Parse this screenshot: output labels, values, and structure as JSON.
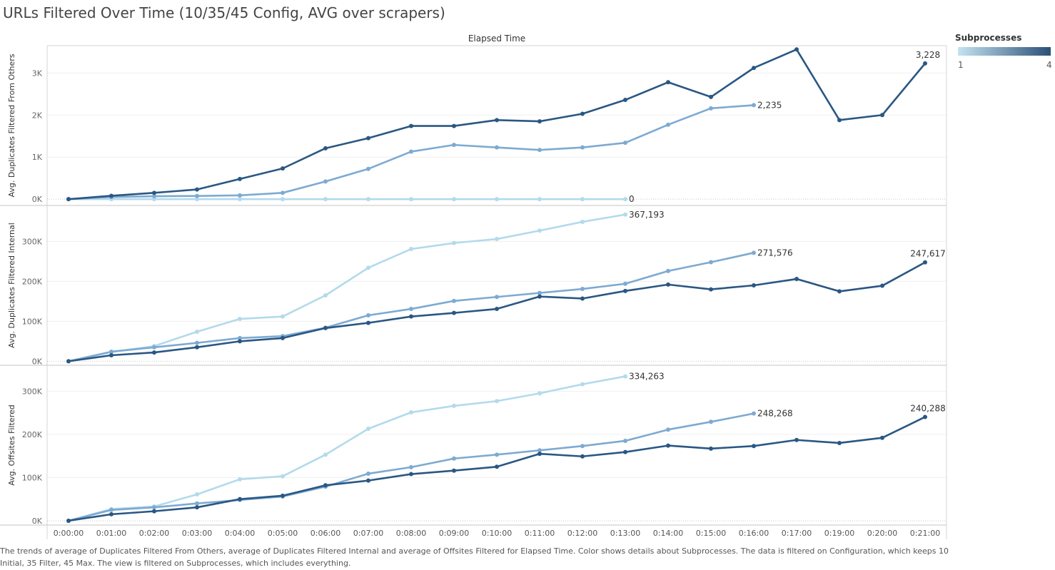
{
  "page": {
    "title": "URLs Filtered Over Time (10/35/45 Config, AVG over scrapers)",
    "caption": "The trends of average of Duplicates Filtered From Others, average of Duplicates Filtered Internal and average of Offsites Filtered for Elapsed Time.  Color shows details about Subprocesses. The data is filtered on Configuration, which keeps 10 Initial, 35 Filter, 45 Max. The view is filtered on Subprocesses, which includes everything."
  },
  "legend": {
    "title": "Subprocesses",
    "min_label": "1",
    "max_label": "4",
    "color_low": "#c5e3f2",
    "color_high": "#2b5076"
  },
  "chart_data": {
    "type": "line",
    "column_header": "Elapsed Time",
    "categories": [
      "0:00:00",
      "0:01:00",
      "0:02:00",
      "0:03:00",
      "0:04:00",
      "0:05:00",
      "0:06:00",
      "0:07:00",
      "0:08:00",
      "0:09:00",
      "0:10:00",
      "0:11:00",
      "0:12:00",
      "0:13:00",
      "0:14:00",
      "0:15:00",
      "0:16:00",
      "0:17:00",
      "0:19:00",
      "0:20:00",
      "0:21:00"
    ],
    "colors": {
      "light": "#b3daec",
      "mid": "#7daad2",
      "dark": "#2a5783"
    },
    "panels": [
      {
        "ylabel": "Avg. Duplicates Filtered From Others",
        "ylim": [
          -150,
          3650
        ],
        "ticks": [
          0,
          1000,
          2000,
          3000
        ],
        "tick_labels": [
          "0K",
          "1K",
          "2K",
          "3K"
        ],
        "series": [
          {
            "color": "light",
            "values": [
              0,
              0,
              0,
              0,
              0,
              0,
              0,
              0,
              0,
              0,
              0,
              0,
              0,
              0,
              null,
              null,
              null,
              null,
              null,
              null,
              null
            ],
            "end_label": "0"
          },
          {
            "color": "mid",
            "values": [
              0,
              50,
              70,
              75,
              90,
              150,
              420,
              720,
              1130,
              1290,
              1230,
              1170,
              1230,
              1340,
              1770,
              2160,
              2235,
              null,
              null,
              null,
              null
            ],
            "end_label": "2,235"
          },
          {
            "color": "dark",
            "values": [
              0,
              80,
              150,
              230,
              480,
              730,
              1210,
              1450,
              1740,
              1740,
              1880,
              1850,
              2030,
              2360,
              2780,
              2430,
              3120,
              3560,
              1880,
              2000,
              3228
            ],
            "end_label": "3,228"
          }
        ]
      },
      {
        "ylabel": "Avg. Duplicates Filtered Internal",
        "ylim": [
          -10000,
          390000
        ],
        "ticks": [
          0,
          100000,
          200000,
          300000
        ],
        "tick_labels": [
          "0K",
          "100K",
          "200K",
          "300K"
        ],
        "series": [
          {
            "color": "light",
            "values": [
              0,
              23000,
              38000,
              74000,
              106000,
              112000,
              165000,
              234000,
              281000,
              296000,
              306000,
              327000,
              349000,
              367193,
              null,
              null,
              null,
              null,
              null,
              null,
              null
            ],
            "end_label": "367,193"
          },
          {
            "color": "mid",
            "values": [
              0,
              24000,
              35000,
              46000,
              58000,
              63000,
              84000,
              115000,
              131000,
              151000,
              161000,
              171000,
              181000,
              194000,
              226000,
              248000,
              271576,
              null,
              null,
              null,
              null
            ],
            "end_label": "271,576"
          },
          {
            "color": "dark",
            "values": [
              0,
              15000,
              22000,
              35000,
              50000,
              58000,
              83000,
              96000,
              112000,
              121000,
              131000,
              162000,
              157000,
              176000,
              192000,
              180000,
              190000,
              206000,
              175000,
              189000,
              247617
            ],
            "end_label": "247,617"
          }
        ]
      },
      {
        "ylabel": "Avg. Offsites Filtered",
        "ylim": [
          -10000,
          360000
        ],
        "ticks": [
          0,
          100000,
          200000,
          300000
        ],
        "tick_labels": [
          "0K",
          "100K",
          "200K",
          "300K"
        ],
        "series": [
          {
            "color": "light",
            "values": [
              0,
              27000,
              33000,
              61000,
              96000,
              103000,
              153000,
              213000,
              251000,
              266000,
              277000,
              295000,
              316000,
              334263,
              null,
              null,
              null,
              null,
              null,
              null,
              null
            ],
            "end_label": "334,263"
          },
          {
            "color": "mid",
            "values": [
              0,
              25000,
              31000,
              40000,
              48000,
              56000,
              79000,
              109000,
              124000,
              144000,
              153000,
              163000,
              173000,
              185000,
              211000,
              229000,
              248268,
              null,
              null,
              null,
              null
            ],
            "end_label": "248,268"
          },
          {
            "color": "dark",
            "values": [
              0,
              15000,
              22000,
              31000,
              50000,
              58000,
              82000,
              93000,
              108000,
              116000,
              125000,
              155000,
              149000,
              159000,
              174000,
              167000,
              173000,
              187000,
              180000,
              192000,
              240288
            ],
            "end_label": "240,288"
          }
        ]
      }
    ]
  }
}
